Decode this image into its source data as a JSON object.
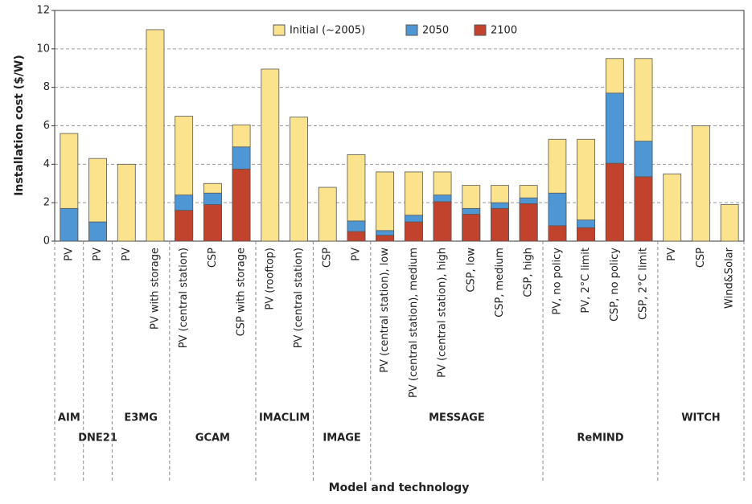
{
  "chart_data": {
    "type": "bar",
    "y_label": "Installation cost ($/W)",
    "x_label": "Model and technology",
    "groups": [
      {
        "name": "AIM",
        "categories": [
          "PV"
        ]
      },
      {
        "name": "DNE21",
        "categories": [
          "PV"
        ]
      },
      {
        "name": "E3MG",
        "categories": [
          "PV",
          "PV with storage"
        ]
      },
      {
        "name": "GCAM",
        "categories": [
          "PV (central station)",
          "CSP",
          "CSP with storage"
        ]
      },
      {
        "name": "IMACLIM",
        "categories": [
          "PV (rooftop)",
          "PV (central station)"
        ]
      },
      {
        "name": "IMAGE",
        "categories": [
          "CSP",
          "PV"
        ]
      },
      {
        "name": "MESSAGE",
        "categories": [
          "PV (central station), low",
          "PV (central station), medium",
          "PV (central station), high",
          "CSP, low",
          "CSP, medium",
          "CSP, high"
        ]
      },
      {
        "name": "ReMIND",
        "categories": [
          "PV, no policy",
          "PV, 2°C limit",
          "CSP, no policy",
          "CSP, 2°C limit"
        ]
      },
      {
        "name": "WITCH",
        "categories": [
          "PV",
          "CSP",
          "Wind&Solar"
        ]
      }
    ],
    "series": [
      {
        "name": "Initial (~2005)",
        "color": "#fbe38e",
        "values": [
          5.6,
          4.3,
          4.0,
          11.0,
          6.5,
          3.0,
          6.05,
          8.95,
          6.45,
          2.8,
          4.5,
          3.6,
          3.6,
          3.6,
          2.9,
          2.9,
          2.9,
          5.3,
          5.3,
          9.5,
          9.5,
          3.5,
          6.0,
          1.9
        ]
      },
      {
        "name": "2050",
        "color": "#4f97d4",
        "values": [
          1.7,
          1.0,
          null,
          null,
          2.4,
          2.5,
          4.9,
          null,
          null,
          null,
          1.05,
          0.55,
          1.35,
          2.4,
          1.7,
          2.0,
          2.25,
          2.5,
          1.1,
          7.7,
          5.2,
          null,
          null,
          null
        ]
      },
      {
        "name": "2100",
        "color": "#c2432d",
        "values": [
          null,
          null,
          null,
          null,
          1.6,
          1.9,
          3.75,
          null,
          null,
          null,
          0.5,
          0.3,
          1.0,
          2.05,
          1.4,
          1.7,
          1.95,
          0.8,
          0.7,
          4.05,
          3.35,
          null,
          null,
          null
        ]
      }
    ],
    "ylim": [
      0,
      12
    ],
    "yticks": [
      0,
      2,
      4,
      6,
      8,
      10,
      12
    ],
    "grid": true
  }
}
